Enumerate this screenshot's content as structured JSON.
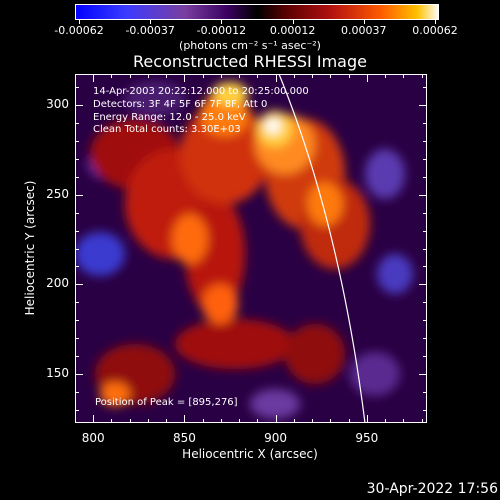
{
  "colorbar": {
    "tick_labels": [
      "-0.00062",
      "-0.00037",
      "-0.00012",
      "0.00012",
      "0.00037",
      "0.00062"
    ],
    "units": "(photons cm⁻² s⁻¹ asec⁻²)"
  },
  "chart_data": {
    "type": "heatmap",
    "title": "Reconstructed RHESSI Image",
    "xlabel": "Heliocentric X (arcsec)",
    "ylabel": "Heliocentric Y (arcsec)",
    "xlim": [
      790,
      983
    ],
    "ylim": [
      123,
      317
    ],
    "x_ticks": [
      800,
      850,
      900,
      950
    ],
    "y_ticks": [
      150,
      200,
      250,
      300
    ],
    "color_range": [
      -0.00062,
      0.00062
    ],
    "peak": [
      895,
      276
    ],
    "info_lines": [
      "14-Apr-2003 20:22:12.000 to 20:25:00.000",
      "Detectors: 3F 4F 5F 6F 7F 8F, Att 0",
      "Energy Range: 12.0 - 25.0 keV",
      "Clean     Total counts: 3.30E+03"
    ],
    "peak_label": "Position of Peak = [895,276]"
  },
  "footer": {
    "timestamp": "30-Apr-2022 17:56"
  }
}
